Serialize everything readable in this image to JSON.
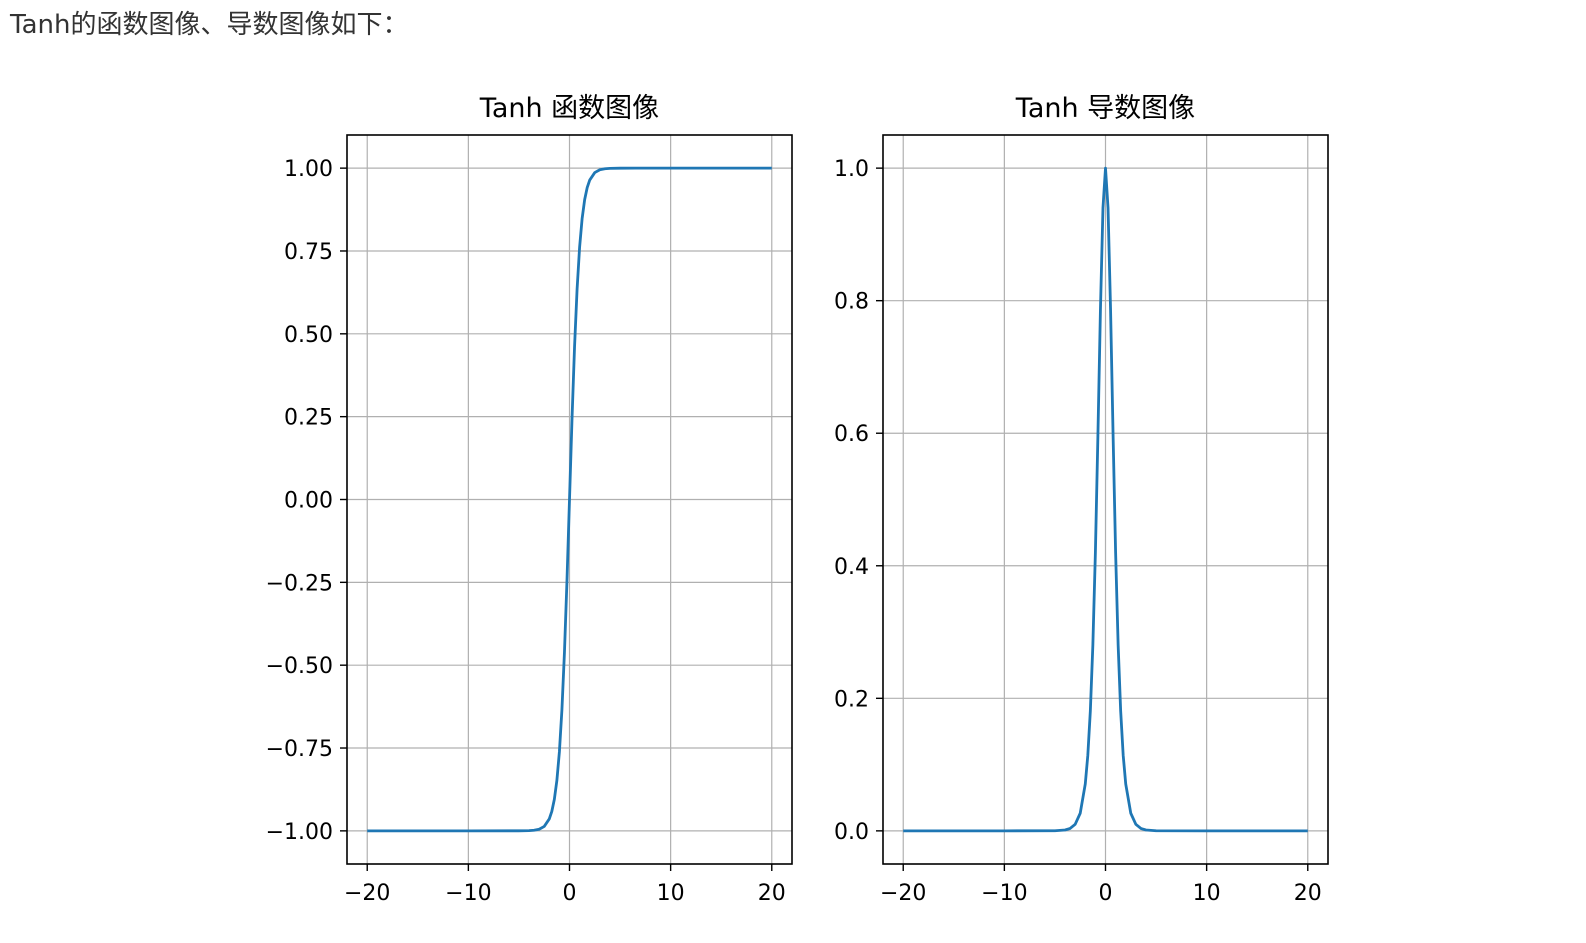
{
  "intro_text": "Tanh的函数图像、导数图像如下：",
  "chart_data": [
    {
      "type": "line",
      "title": "Tanh 函数图像",
      "xlim": [
        -22,
        22
      ],
      "ylim": [
        -1.1,
        1.1
      ],
      "xticks": [
        -20,
        -10,
        0,
        10,
        20
      ],
      "xtick_labels": [
        "−20",
        "−10",
        "0",
        "10",
        "20"
      ],
      "yticks": [
        1.0,
        0.75,
        0.5,
        0.25,
        0.0,
        -0.25,
        -0.5,
        -0.75,
        -1.0
      ],
      "ytick_labels": [
        "1.00",
        "0.75",
        "0.50",
        "0.25",
        "0.00",
        "−0.25",
        "−0.50",
        "−0.75",
        "−1.00"
      ],
      "grid": true,
      "line_color": "#1f77b4",
      "series": [
        {
          "x": [
            -20,
            -10,
            -5,
            -4,
            -3.5,
            -3,
            -2.5,
            -2,
            -1.75,
            -1.5,
            -1.25,
            -1,
            -0.75,
            -0.5,
            -0.25,
            0,
            0.25,
            0.5,
            0.75,
            1,
            1.25,
            1.5,
            1.75,
            2,
            2.5,
            3,
            3.5,
            4,
            5,
            10,
            20
          ],
          "y": [
            -1.0,
            -1.0,
            -0.9999,
            -0.9993,
            -0.9982,
            -0.9951,
            -0.9866,
            -0.964,
            -0.9414,
            -0.9051,
            -0.8483,
            -0.7616,
            -0.6351,
            -0.4621,
            -0.2449,
            0.0,
            0.2449,
            0.4621,
            0.6351,
            0.7616,
            0.8483,
            0.9051,
            0.9414,
            0.964,
            0.9866,
            0.9951,
            0.9982,
            0.9993,
            0.9999,
            1.0,
            1.0
          ]
        }
      ]
    },
    {
      "type": "line",
      "title": "Tanh 导数图像",
      "xlim": [
        -22,
        22
      ],
      "ylim": [
        -0.05,
        1.05
      ],
      "xticks": [
        -20,
        -10,
        0,
        10,
        20
      ],
      "xtick_labels": [
        "−20",
        "−10",
        "0",
        "10",
        "20"
      ],
      "yticks": [
        1.0,
        0.8,
        0.6,
        0.4,
        0.2,
        0.0
      ],
      "ytick_labels": [
        "1.0",
        "0.8",
        "0.6",
        "0.4",
        "0.2",
        "0.0"
      ],
      "grid": true,
      "line_color": "#1f77b4",
      "series": [
        {
          "x": [
            -20,
            -10,
            -5,
            -4,
            -3.5,
            -3,
            -2.5,
            -2,
            -1.75,
            -1.5,
            -1.25,
            -1,
            -0.75,
            -0.5,
            -0.25,
            0,
            0.25,
            0.5,
            0.75,
            1,
            1.25,
            1.5,
            1.75,
            2,
            2.5,
            3,
            3.5,
            4,
            5,
            10,
            20
          ],
          "y": [
            0.0,
            0.0,
            0.0002,
            0.0013,
            0.0036,
            0.0099,
            0.0266,
            0.0707,
            0.1138,
            0.1807,
            0.2804,
            0.42,
            0.5966,
            0.7864,
            0.94,
            1.0,
            0.94,
            0.7864,
            0.5966,
            0.42,
            0.2804,
            0.1807,
            0.1138,
            0.0707,
            0.0266,
            0.0099,
            0.0036,
            0.0013,
            0.0002,
            0.0,
            0.0
          ]
        }
      ]
    }
  ]
}
